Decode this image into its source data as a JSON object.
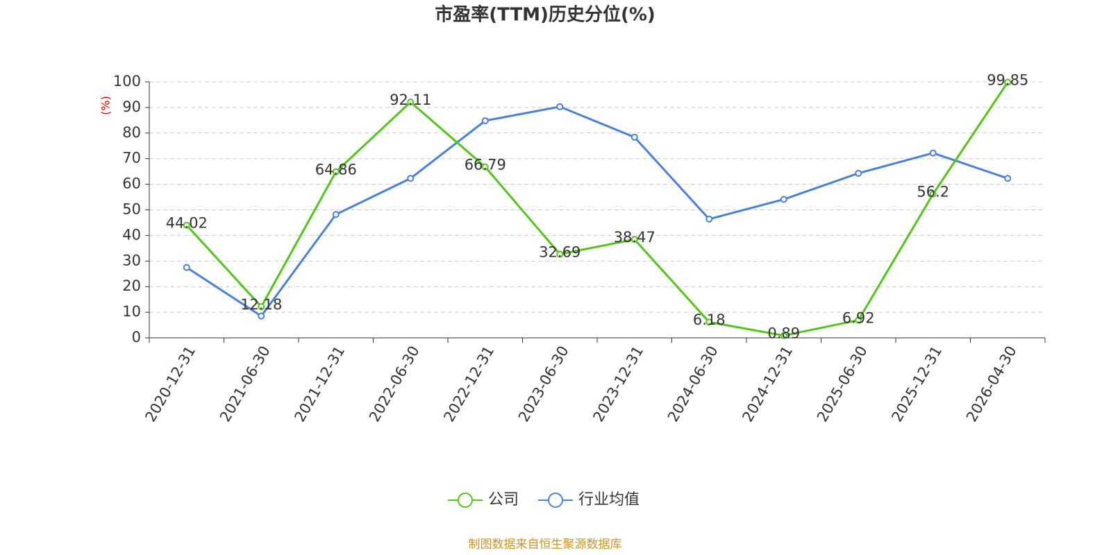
{
  "chart_data": {
    "type": "line",
    "title": "市盈率(TTM)历史分位(%)",
    "y_label": "(%)",
    "categories": [
      "2020-12-31",
      "2021-06-30",
      "2021-12-31",
      "2022-06-30",
      "2022-12-31",
      "2023-06-30",
      "2023-12-31",
      "2024-06-30",
      "2024-12-31",
      "2025-06-30",
      "2025-12-31",
      "2026-04-30"
    ],
    "series": [
      {
        "name": "公司",
        "color": "#52c41a",
        "values": [
          44.02,
          12.18,
          64.86,
          92.11,
          66.79,
          32.69,
          38.47,
          6.18,
          0.89,
          6.92,
          56.2,
          99.85
        ]
      },
      {
        "name": "行业均值",
        "color": "#4a7fdc",
        "values": [
          27.5,
          8.5,
          48.2,
          62.3,
          84.8,
          90.3,
          78.4,
          46.4,
          54.1,
          64.3,
          72.2,
          62.3
        ]
      }
    ],
    "ylim": [
      0,
      100
    ],
    "yticks": [
      0,
      10,
      20,
      30,
      40,
      50,
      60,
      70,
      80,
      90,
      100
    ],
    "grid": true,
    "source": "制图数据来自恒生聚源数据库"
  }
}
